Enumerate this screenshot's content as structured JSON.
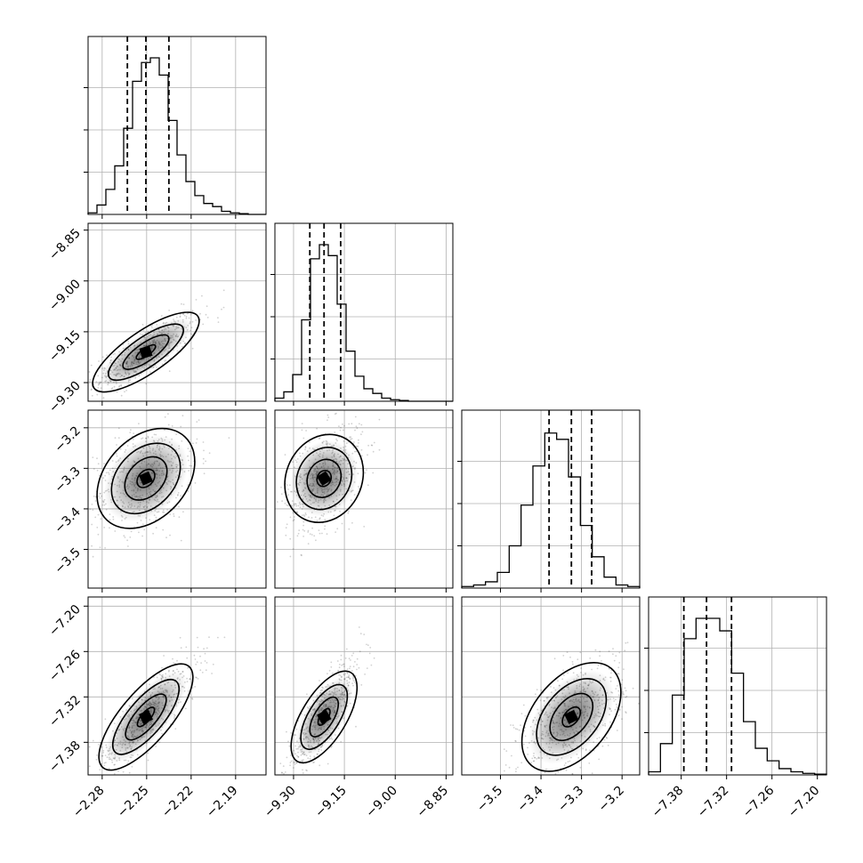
{
  "chart_data": {
    "type": "corner",
    "grid": true,
    "parameters": [
      {
        "ticks": [
          -2.28,
          -2.25,
          -2.22,
          -2.19
        ],
        "tick_labels": [
          "−2.28",
          "−2.25",
          "−2.22",
          "−2.19"
        ],
        "range": [
          -2.2895,
          -2.1695
        ],
        "quantiles": [
          -2.263,
          -2.2505,
          -2.235
        ]
      },
      {
        "ticks": [
          -9.3,
          -9.15,
          -9.0,
          -8.85
        ],
        "tick_labels": [
          "−9.30",
          "−9.15",
          "−9.00",
          "−8.85"
        ],
        "range": [
          -9.355,
          -8.83
        ],
        "quantiles": [
          -9.252,
          -9.21,
          -9.161
        ]
      },
      {
        "ticks": [
          -3.5,
          -3.4,
          -3.3,
          -3.2
        ],
        "tick_labels": [
          "−3.5",
          "−3.4",
          "−3.3",
          "−3.2"
        ],
        "range": [
          -3.5955,
          -3.1565
        ],
        "quantiles": [
          -3.38,
          -3.325,
          -3.275
        ]
      },
      {
        "ticks": [
          -7.38,
          -7.32,
          -7.26,
          -7.2
        ],
        "tick_labels": [
          "−7.38",
          "−7.32",
          "−7.26",
          "−7.20"
        ],
        "range": [
          -7.4231,
          -7.1879
        ],
        "quantiles": [
          -7.3765,
          -7.3465,
          -7.3135
        ]
      }
    ],
    "histograms": [
      [
        0.01,
        0.06,
        0.16,
        0.31,
        0.55,
        0.85,
        0.97,
        1.0,
        0.89,
        0.6,
        0.38,
        0.21,
        0.12,
        0.07,
        0.05,
        0.02,
        0.01,
        0.005,
        0,
        0
      ],
      [
        0.02,
        0.06,
        0.17,
        0.52,
        0.91,
        1.0,
        0.93,
        0.62,
        0.32,
        0.16,
        0.08,
        0.05,
        0.02,
        0.01,
        0.005,
        0,
        0,
        0,
        0,
        0
      ],
      [
        0.01,
        0.02,
        0.04,
        0.1,
        0.27,
        0.53,
        0.78,
        0.99,
        0.95,
        0.71,
        0.4,
        0.2,
        0.07,
        0.02,
        0.01
      ],
      [
        0.02,
        0.2,
        0.51,
        0.87,
        1.0,
        1.0,
        0.92,
        0.65,
        0.34,
        0.17,
        0.09,
        0.04,
        0.02,
        0.01,
        0.005
      ]
    ]
  }
}
